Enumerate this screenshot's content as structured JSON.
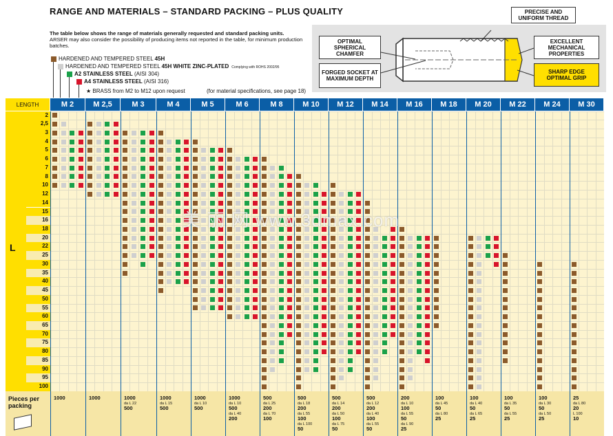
{
  "title": "RANGE AND MATERIALS – STANDARD PACKING – PLUS QUALITY",
  "intro": {
    "bold": "The table below shows the range of materials generally requested and standard packing units.",
    "text": "ARSER may also consider the possibility of producing items not reported in the table, for minimum production batches."
  },
  "legend": [
    {
      "text": "HARDENED AND TEMPERED STEEL ",
      "bold": "45H",
      "extra": "",
      "color": "#8b5a2b"
    },
    {
      "text": "HARDENED AND TEMPERED STEEL ",
      "bold": "45H WHITE ZINC-PLATED",
      "extra": "Complying with ROHS 2002/95",
      "color": "#cfcfcf"
    },
    {
      "text": "",
      "bold": "A2 STAINLESS STEEL",
      "extra": " (AISI 304)",
      "color": "#1aa14a"
    },
    {
      "text": "",
      "bold": "A4 STAINLESS STEEL",
      "extra": " (AISI 316)",
      "color": "#d8142b"
    }
  ],
  "brass_note": "★ BRASS from M2 to M12 upon request",
  "spec_note": "(for material specifications, see page 18)",
  "callouts": {
    "thread": "PRECISE AND UNIFORM THREAD",
    "chamfer": "OPTIMAL SPHERICAL CHAMFER",
    "mech": "EXCELLENT MECHANICAL PROPERTIES",
    "socket": "FORGED SOCKET AT MAXIMUM DEPTH",
    "edge": "SHARP EDGE OPTIMAL GRIP"
  },
  "watermark": "美 丽 网 www.3dmax.com",
  "table": {
    "length_label": "LENGTH",
    "l_label": "L",
    "colors": {
      "b": "#8b5a2b",
      "g": "#1aa14a",
      "s": "#cfcfcf",
      "r": "#d8142b"
    },
    "sizes": [
      "M 2",
      "M 2,5",
      "M 3",
      "M 4",
      "M 5",
      "M 6",
      "M 8",
      "M 10",
      "M 12",
      "M 14",
      "M 16",
      "M 18",
      "M 20",
      "M 22",
      "M 24",
      "M 30"
    ],
    "lengths": [
      "2",
      "2,5",
      "3",
      "4",
      "5",
      "6",
      "7",
      "8",
      "10",
      "12",
      "14",
      "15",
      "16",
      "18",
      "20",
      "22",
      "25",
      "30",
      "35",
      "40",
      "45",
      "50",
      "55",
      "60",
      "65",
      "70",
      "75",
      "80",
      "85",
      "90",
      "95",
      "100"
    ],
    "ranges": [
      {
        "b": [
          0,
          8
        ],
        "s": [
          1,
          8
        ],
        "g": [
          2,
          8
        ],
        "r": [
          2,
          8
        ]
      },
      {
        "b": [
          1,
          9
        ],
        "s": [
          1,
          9
        ],
        "g": [
          1,
          9
        ],
        "r": [
          1,
          9
        ]
      },
      {
        "b": [
          2,
          18
        ],
        "s": [
          2,
          16
        ],
        "g": [
          2,
          17
        ],
        "r": [
          2,
          16
        ]
      },
      {
        "b": [
          2,
          20
        ],
        "s": [
          3,
          19
        ],
        "g": [
          3,
          19
        ],
        "r": [
          3,
          19
        ]
      },
      {
        "b": [
          3,
          22
        ],
        "s": [
          4,
          22
        ],
        "g": [
          4,
          22
        ],
        "r": [
          4,
          22
        ]
      },
      {
        "b": [
          4,
          23
        ],
        "s": [
          5,
          23
        ],
        "g": [
          5,
          23
        ],
        "r": [
          5,
          23
        ]
      },
      {
        "b": [
          5,
          31
        ],
        "s": [
          6,
          29
        ],
        "g": [
          6,
          28
        ],
        "r": [
          7,
          25
        ]
      },
      {
        "b": [
          7,
          31
        ],
        "s": [
          8,
          29
        ],
        "g": [
          8,
          29
        ],
        "r": [
          9,
          27
        ]
      },
      {
        "b": [
          8,
          31
        ],
        "s": [
          9,
          30
        ],
        "g": [
          9,
          29
        ],
        "r": [
          9,
          27
        ]
      },
      {
        "b": [
          10,
          31
        ],
        "s": [
          13,
          30
        ],
        "g": [
          14,
          27
        ],
        "r": [
          13,
          25
        ]
      },
      {
        "b": [
          13,
          31
        ],
        "s": [
          14,
          30
        ],
        "g": [
          14,
          27
        ],
        "r": [
          14,
          28
        ]
      },
      {
        "b": [
          14,
          24
        ],
        "s": null,
        "g": null,
        "r": null
      },
      {
        "b": [
          14,
          31
        ],
        "s": [
          14,
          31
        ],
        "g": [
          14,
          16
        ],
        "r": [
          14,
          17
        ]
      },
      {
        "b": [
          16,
          28
        ],
        "s": null,
        "g": null,
        "r": null
      },
      {
        "b": [
          17,
          31
        ],
        "s": null,
        "g": null,
        "r": null
      },
      {
        "b": [
          17,
          31
        ],
        "s": null,
        "g": null,
        "r": null
      }
    ],
    "packing_label": "Pieces per packing",
    "packing": [
      [
        [
          "1000",
          ""
        ]
      ],
      [
        [
          "1000",
          ""
        ]
      ],
      [
        [
          "1000",
          "da L 22"
        ],
        [
          "500",
          ""
        ]
      ],
      [
        [
          "1000",
          "da L 15"
        ],
        [
          "500",
          ""
        ]
      ],
      [
        [
          "1000",
          "da L 10"
        ],
        [
          "500",
          ""
        ]
      ],
      [
        [
          "1000",
          "da L 10"
        ],
        [
          "500",
          "da L 40"
        ],
        [
          "200",
          ""
        ]
      ],
      [
        [
          "500",
          "da L 25"
        ],
        [
          "200",
          "da L 70"
        ],
        [
          "100",
          ""
        ]
      ],
      [
        [
          "500",
          "da L 18"
        ],
        [
          "200",
          "da L 55"
        ],
        [
          "100",
          "da L 100"
        ],
        [
          "50",
          ""
        ]
      ],
      [
        [
          "500",
          "da L 14"
        ],
        [
          "200",
          "da L 50"
        ],
        [
          "100",
          "da L 75"
        ],
        [
          "50",
          ""
        ]
      ],
      [
        [
          "500",
          "da L 12"
        ],
        [
          "200",
          "da L 40"
        ],
        [
          "100",
          "da L 55"
        ],
        [
          "50",
          ""
        ]
      ],
      [
        [
          "200",
          "da L 10"
        ],
        [
          "100",
          "da L 55"
        ],
        [
          "50",
          "da L 90"
        ],
        [
          "25",
          ""
        ]
      ],
      [
        [
          "100",
          "da L 45"
        ],
        [
          "50",
          "da L 80"
        ],
        [
          "25",
          ""
        ]
      ],
      [
        [
          "100",
          "da L 40"
        ],
        [
          "50",
          "da L 65"
        ],
        [
          "25",
          ""
        ]
      ],
      [
        [
          "100",
          "da L 35"
        ],
        [
          "50",
          "da L 55"
        ],
        [
          "25",
          ""
        ]
      ],
      [
        [
          "100",
          "da L 30"
        ],
        [
          "50",
          "da L 50"
        ],
        [
          "25",
          ""
        ]
      ],
      [
        [
          "25",
          "da L 80"
        ],
        [
          "20",
          "L 100"
        ],
        [
          "10",
          ""
        ]
      ]
    ]
  }
}
